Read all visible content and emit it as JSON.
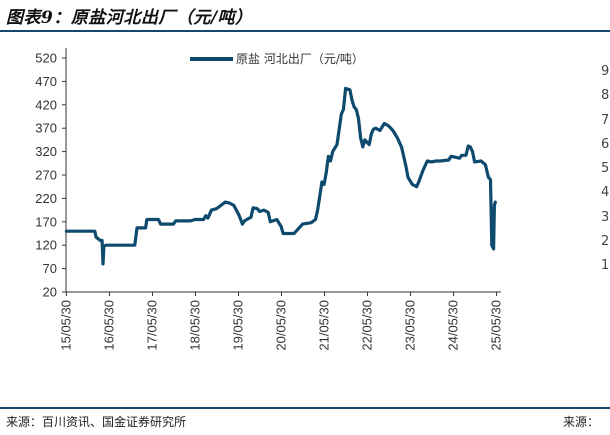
{
  "figure": {
    "title": "图表9：原盐河北出厂（元/吨）",
    "source_left": "来源：百川资讯、国金证券研究所",
    "source_right": "来源："
  },
  "colors": {
    "line": "#0e4a6e",
    "rule": "#14466e",
    "axis": "#333333"
  },
  "ghost_ticks": [
    "9",
    "8",
    "7",
    "6",
    "5",
    "4",
    "3",
    "2",
    "1"
  ],
  "chart_data": {
    "type": "line",
    "title": "",
    "xlabel": "",
    "ylabel": "",
    "ylim": [
      20,
      520
    ],
    "yticks": [
      20,
      70,
      120,
      170,
      220,
      270,
      320,
      370,
      420,
      470,
      520
    ],
    "xlim": [
      2015.4,
      2025.42
    ],
    "xticks": [
      {
        "label": "15/05/30",
        "x": 2015.41
      },
      {
        "label": "16/05/30",
        "x": 2016.41
      },
      {
        "label": "17/05/30",
        "x": 2017.41
      },
      {
        "label": "18/05/30",
        "x": 2018.41
      },
      {
        "label": "19/05/30",
        "x": 2019.41
      },
      {
        "label": "20/05/30",
        "x": 2020.41
      },
      {
        "label": "21/05/30",
        "x": 2021.41
      },
      {
        "label": "22/05/30",
        "x": 2022.41
      },
      {
        "label": "23/05/30",
        "x": 2023.41
      },
      {
        "label": "24/05/30",
        "x": 2024.41
      },
      {
        "label": "25/05/30",
        "x": 2025.41
      }
    ],
    "grid": false,
    "legend_position": "top",
    "series": [
      {
        "name": "原盐 河北出厂（元/吨）",
        "points": [
          [
            2015.41,
            150
          ],
          [
            2016.07,
            150
          ],
          [
            2016.1,
            137
          ],
          [
            2016.2,
            130
          ],
          [
            2016.24,
            130
          ],
          [
            2016.26,
            80
          ],
          [
            2016.28,
            118
          ],
          [
            2016.33,
            120
          ],
          [
            2017.0,
            120
          ],
          [
            2017.05,
            157
          ],
          [
            2017.25,
            157
          ],
          [
            2017.28,
            175
          ],
          [
            2017.55,
            175
          ],
          [
            2017.6,
            165
          ],
          [
            2017.9,
            165
          ],
          [
            2017.95,
            172
          ],
          [
            2018.3,
            172
          ],
          [
            2018.4,
            175
          ],
          [
            2018.6,
            175
          ],
          [
            2018.65,
            183
          ],
          [
            2018.7,
            178
          ],
          [
            2018.78,
            195
          ],
          [
            2018.9,
            198
          ],
          [
            2019.0,
            205
          ],
          [
            2019.1,
            212
          ],
          [
            2019.2,
            210
          ],
          [
            2019.3,
            205
          ],
          [
            2019.42,
            185
          ],
          [
            2019.5,
            165
          ],
          [
            2019.55,
            172
          ],
          [
            2019.7,
            180
          ],
          [
            2019.75,
            200
          ],
          [
            2019.85,
            198
          ],
          [
            2019.9,
            192
          ],
          [
            2020.0,
            195
          ],
          [
            2020.1,
            190
          ],
          [
            2020.15,
            170
          ],
          [
            2020.3,
            175
          ],
          [
            2020.4,
            160
          ],
          [
            2020.45,
            145
          ],
          [
            2020.7,
            145
          ],
          [
            2020.8,
            155
          ],
          [
            2020.9,
            165
          ],
          [
            2021.1,
            168
          ],
          [
            2021.2,
            175
          ],
          [
            2021.25,
            195
          ],
          [
            2021.3,
            225
          ],
          [
            2021.35,
            255
          ],
          [
            2021.4,
            250
          ],
          [
            2021.45,
            275
          ],
          [
            2021.5,
            310
          ],
          [
            2021.55,
            300
          ],
          [
            2021.6,
            320
          ],
          [
            2021.7,
            335
          ],
          [
            2021.8,
            400
          ],
          [
            2021.85,
            410
          ],
          [
            2021.9,
            455
          ],
          [
            2022.0,
            452
          ],
          [
            2022.05,
            430
          ],
          [
            2022.1,
            415
          ],
          [
            2022.15,
            410
          ],
          [
            2022.2,
            390
          ],
          [
            2022.25,
            350
          ],
          [
            2022.3,
            330
          ],
          [
            2022.35,
            345
          ],
          [
            2022.45,
            335
          ],
          [
            2022.5,
            358
          ],
          [
            2022.55,
            368
          ],
          [
            2022.6,
            370
          ],
          [
            2022.7,
            365
          ],
          [
            2022.8,
            380
          ],
          [
            2022.9,
            375
          ],
          [
            2023.0,
            365
          ],
          [
            2023.1,
            350
          ],
          [
            2023.2,
            330
          ],
          [
            2023.3,
            290
          ],
          [
            2023.35,
            265
          ],
          [
            2023.45,
            250
          ],
          [
            2023.55,
            245
          ],
          [
            2023.6,
            255
          ],
          [
            2023.7,
            280
          ],
          [
            2023.8,
            300
          ],
          [
            2023.9,
            298
          ],
          [
            2024.0,
            300
          ],
          [
            2024.1,
            300
          ],
          [
            2024.3,
            302
          ],
          [
            2024.35,
            310
          ],
          [
            2024.45,
            308
          ],
          [
            2024.55,
            306
          ],
          [
            2024.6,
            312
          ],
          [
            2024.7,
            312
          ],
          [
            2024.75,
            332
          ],
          [
            2024.8,
            330
          ],
          [
            2024.85,
            320
          ],
          [
            2024.9,
            298
          ],
          [
            2025.05,
            300
          ],
          [
            2025.15,
            292
          ],
          [
            2025.22,
            265
          ],
          [
            2025.27,
            260
          ],
          [
            2025.3,
            120
          ],
          [
            2025.34,
            112
          ],
          [
            2025.36,
            205
          ],
          [
            2025.38,
            212
          ]
        ]
      }
    ]
  }
}
